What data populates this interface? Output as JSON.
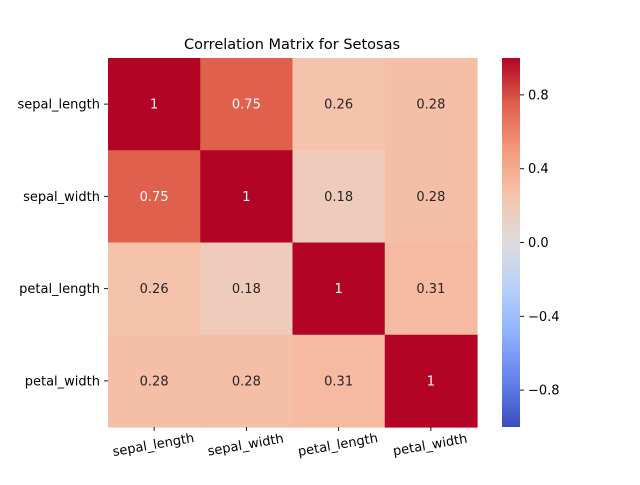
{
  "chart_data": {
    "type": "heatmap",
    "title": "Correlation Matrix for Setosas",
    "xlabel": "",
    "ylabel": "",
    "rows": [
      "sepal_length",
      "sepal_width",
      "petal_length",
      "petal_width"
    ],
    "columns": [
      "sepal_length",
      "sepal_width",
      "petal_length",
      "petal_width"
    ],
    "values": [
      [
        1,
        0.75,
        0.26,
        0.28
      ],
      [
        0.75,
        1,
        0.18,
        0.28
      ],
      [
        0.26,
        0.18,
        1,
        0.31
      ],
      [
        0.28,
        0.28,
        0.31,
        1
      ]
    ],
    "value_labels": [
      [
        "1",
        "0.75",
        "0.26",
        "0.28"
      ],
      [
        "0.75",
        "1",
        "0.18",
        "0.28"
      ],
      [
        "0.26",
        "0.18",
        "1",
        "0.31"
      ],
      [
        "0.28",
        "0.28",
        "0.31",
        "1"
      ]
    ],
    "vmin": -1,
    "vmax": 1,
    "colormap": "coolwarm",
    "colorbar": {
      "ticks": [
        0.8,
        0.4,
        0.0,
        -0.4,
        -0.8
      ],
      "tick_labels": [
        "0.8",
        "0.4",
        "0.0",
        "−0.4",
        "−0.8"
      ]
    },
    "x_tick_rotation_degrees": 10,
    "annotations": true,
    "grid": false
  }
}
